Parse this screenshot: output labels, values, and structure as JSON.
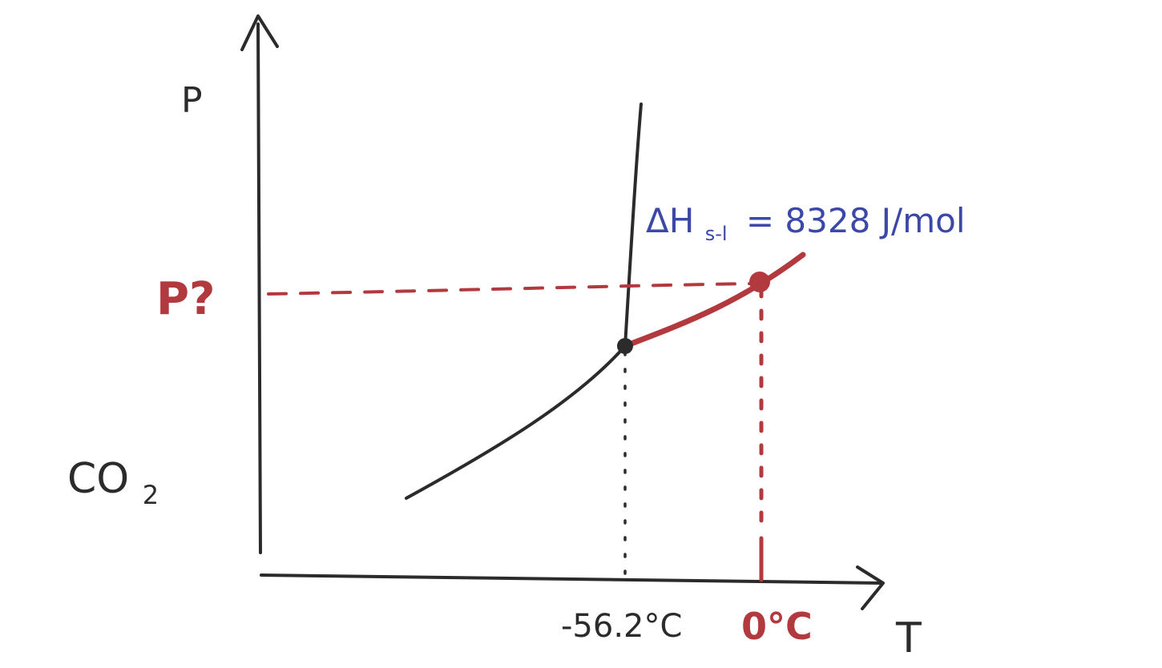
{
  "axes": {
    "y_label": "P",
    "x_label": "T"
  },
  "substance": {
    "name": "CO",
    "subscript": "2"
  },
  "triple_point": {
    "temperature_label": "-56.2°C"
  },
  "target_point": {
    "temperature_label": "0°C",
    "pressure_label": "P?"
  },
  "annotation": {
    "delta_h_symbol": "ΔH",
    "delta_h_subscript": "s-l",
    "delta_h_value": "= 8328 J/mol"
  },
  "colors": {
    "ink_black": "#2b2b2b",
    "ink_red": "#b23a3e",
    "ink_blue": "#3b48a8"
  },
  "icons": {
    "y_arrow": "arrow-up-icon",
    "x_arrow": "arrow-right-icon"
  }
}
